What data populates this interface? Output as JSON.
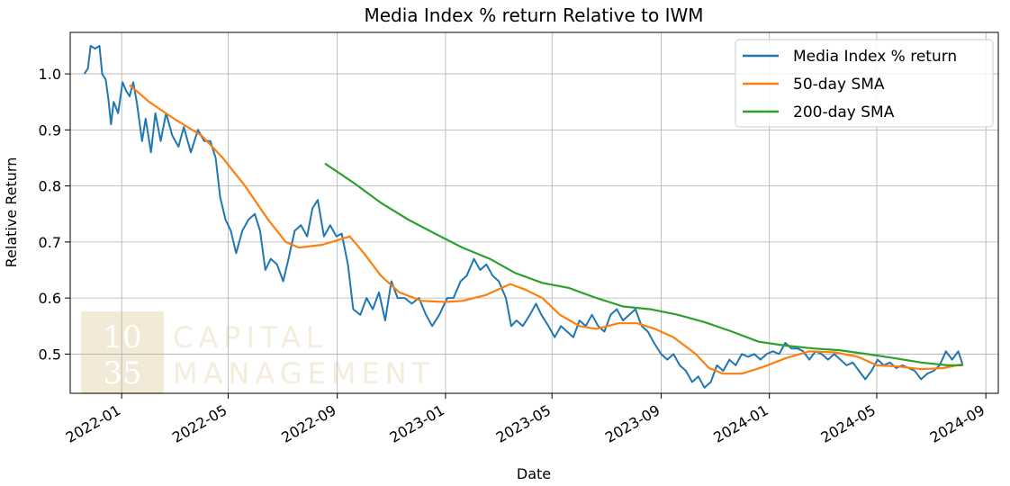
{
  "chart_data": {
    "type": "line",
    "title": "Media Index % return Relative to IWM",
    "xlabel": "Date",
    "ylabel": "Relative Return",
    "xlim": [
      "2021-11-04",
      "2024-09-15"
    ],
    "ylim": [
      0.43,
      1.074
    ],
    "grid": true,
    "legend_position": "top-right",
    "x_ticks": [
      {
        "date": "2022-01-01",
        "label": "2022-01"
      },
      {
        "date": "2022-05-01",
        "label": "2022-05"
      },
      {
        "date": "2022-09-01",
        "label": "2022-09"
      },
      {
        "date": "2023-01-01",
        "label": "2023-01"
      },
      {
        "date": "2023-05-01",
        "label": "2023-05"
      },
      {
        "date": "2023-09-01",
        "label": "2023-09"
      },
      {
        "date": "2024-01-01",
        "label": "2024-01"
      },
      {
        "date": "2024-05-01",
        "label": "2024-05"
      },
      {
        "date": "2024-09-01",
        "label": "2024-09"
      }
    ],
    "y_ticks": [
      {
        "value": 0.5,
        "label": "0.5"
      },
      {
        "value": 0.6,
        "label": "0.6"
      },
      {
        "value": 0.7,
        "label": "0.7"
      },
      {
        "value": 0.8,
        "label": "0.8"
      },
      {
        "value": 0.9,
        "label": "0.9"
      },
      {
        "value": 1.0,
        "label": "1.0"
      }
    ],
    "series": [
      {
        "name": "Media Index % return",
        "color": "#1f77b4",
        "points": [
          [
            "2021-11-20",
            1.0
          ],
          [
            "2021-11-24",
            1.01
          ],
          [
            "2021-11-27",
            1.05
          ],
          [
            "2021-12-02",
            1.045
          ],
          [
            "2021-12-07",
            1.05
          ],
          [
            "2021-12-10",
            1.0
          ],
          [
            "2021-12-14",
            0.99
          ],
          [
            "2021-12-17",
            0.955
          ],
          [
            "2021-12-20",
            0.91
          ],
          [
            "2021-12-23",
            0.95
          ],
          [
            "2021-12-28",
            0.93
          ],
          [
            "2022-01-02",
            0.985
          ],
          [
            "2022-01-06",
            0.97
          ],
          [
            "2022-01-10",
            0.96
          ],
          [
            "2022-01-14",
            0.985
          ],
          [
            "2022-01-18",
            0.95
          ],
          [
            "2022-01-24",
            0.88
          ],
          [
            "2022-01-28",
            0.92
          ],
          [
            "2022-02-03",
            0.86
          ],
          [
            "2022-02-08",
            0.93
          ],
          [
            "2022-02-14",
            0.88
          ],
          [
            "2022-02-20",
            0.93
          ],
          [
            "2022-02-27",
            0.89
          ],
          [
            "2022-03-06",
            0.87
          ],
          [
            "2022-03-12",
            0.905
          ],
          [
            "2022-03-20",
            0.86
          ],
          [
            "2022-03-28",
            0.9
          ],
          [
            "2022-04-04",
            0.88
          ],
          [
            "2022-04-11",
            0.88
          ],
          [
            "2022-04-17",
            0.85
          ],
          [
            "2022-04-22",
            0.78
          ],
          [
            "2022-04-28",
            0.74
          ],
          [
            "2022-05-04",
            0.72
          ],
          [
            "2022-05-10",
            0.68
          ],
          [
            "2022-05-17",
            0.72
          ],
          [
            "2022-05-24",
            0.74
          ],
          [
            "2022-05-31",
            0.75
          ],
          [
            "2022-06-06",
            0.72
          ],
          [
            "2022-06-12",
            0.65
          ],
          [
            "2022-06-18",
            0.67
          ],
          [
            "2022-06-25",
            0.66
          ],
          [
            "2022-07-02",
            0.63
          ],
          [
            "2022-07-08",
            0.67
          ],
          [
            "2022-07-15",
            0.72
          ],
          [
            "2022-07-22",
            0.73
          ],
          [
            "2022-07-29",
            0.71
          ],
          [
            "2022-08-04",
            0.76
          ],
          [
            "2022-08-10",
            0.775
          ],
          [
            "2022-08-17",
            0.71
          ],
          [
            "2022-08-24",
            0.73
          ],
          [
            "2022-08-31",
            0.71
          ],
          [
            "2022-09-06",
            0.715
          ],
          [
            "2022-09-13",
            0.66
          ],
          [
            "2022-09-19",
            0.58
          ],
          [
            "2022-09-27",
            0.57
          ],
          [
            "2022-10-04",
            0.6
          ],
          [
            "2022-10-11",
            0.58
          ],
          [
            "2022-10-18",
            0.61
          ],
          [
            "2022-10-25",
            0.56
          ],
          [
            "2022-11-01",
            0.63
          ],
          [
            "2022-11-08",
            0.6
          ],
          [
            "2022-11-16",
            0.6
          ],
          [
            "2022-11-24",
            0.59
          ],
          [
            "2022-12-02",
            0.6
          ],
          [
            "2022-12-10",
            0.57
          ],
          [
            "2022-12-17",
            0.55
          ],
          [
            "2022-12-25",
            0.57
          ],
          [
            "2023-01-03",
            0.6
          ],
          [
            "2023-01-10",
            0.6
          ],
          [
            "2023-01-18",
            0.63
          ],
          [
            "2023-01-25",
            0.64
          ],
          [
            "2023-02-02",
            0.67
          ],
          [
            "2023-02-09",
            0.65
          ],
          [
            "2023-02-16",
            0.66
          ],
          [
            "2023-02-23",
            0.64
          ],
          [
            "2023-03-02",
            0.63
          ],
          [
            "2023-03-10",
            0.6
          ],
          [
            "2023-03-16",
            0.55
          ],
          [
            "2023-03-22",
            0.56
          ],
          [
            "2023-03-29",
            0.55
          ],
          [
            "2023-04-06",
            0.57
          ],
          [
            "2023-04-13",
            0.59
          ],
          [
            "2023-04-19",
            0.57
          ],
          [
            "2023-04-27",
            0.55
          ],
          [
            "2023-05-04",
            0.53
          ],
          [
            "2023-05-11",
            0.55
          ],
          [
            "2023-05-18",
            0.54
          ],
          [
            "2023-05-25",
            0.53
          ],
          [
            "2023-06-01",
            0.56
          ],
          [
            "2023-06-08",
            0.55
          ],
          [
            "2023-06-15",
            0.57
          ],
          [
            "2023-06-22",
            0.55
          ],
          [
            "2023-06-29",
            0.54
          ],
          [
            "2023-07-06",
            0.57
          ],
          [
            "2023-07-13",
            0.58
          ],
          [
            "2023-07-20",
            0.56
          ],
          [
            "2023-07-27",
            0.57
          ],
          [
            "2023-08-03",
            0.58
          ],
          [
            "2023-08-10",
            0.55
          ],
          [
            "2023-08-17",
            0.54
          ],
          [
            "2023-08-24",
            0.52
          ],
          [
            "2023-09-01",
            0.5
          ],
          [
            "2023-09-08",
            0.49
          ],
          [
            "2023-09-15",
            0.5
          ],
          [
            "2023-09-22",
            0.48
          ],
          [
            "2023-09-29",
            0.47
          ],
          [
            "2023-10-06",
            0.45
          ],
          [
            "2023-10-13",
            0.46
          ],
          [
            "2023-10-20",
            0.44
          ],
          [
            "2023-10-27",
            0.45
          ],
          [
            "2023-11-03",
            0.48
          ],
          [
            "2023-11-10",
            0.47
          ],
          [
            "2023-11-17",
            0.49
          ],
          [
            "2023-11-24",
            0.48
          ],
          [
            "2023-12-01",
            0.5
          ],
          [
            "2023-12-08",
            0.495
          ],
          [
            "2023-12-15",
            0.5
          ],
          [
            "2023-12-22",
            0.49
          ],
          [
            "2023-12-29",
            0.5
          ],
          [
            "2024-01-05",
            0.505
          ],
          [
            "2024-01-12",
            0.5
          ],
          [
            "2024-01-19",
            0.52
          ],
          [
            "2024-01-26",
            0.51
          ],
          [
            "2024-02-02",
            0.51
          ],
          [
            "2024-02-08",
            0.505
          ],
          [
            "2024-02-15",
            0.49
          ],
          [
            "2024-02-22",
            0.505
          ],
          [
            "2024-02-29",
            0.5
          ],
          [
            "2024-03-07",
            0.49
          ],
          [
            "2024-03-14",
            0.5
          ],
          [
            "2024-03-21",
            0.49
          ],
          [
            "2024-03-28",
            0.48
          ],
          [
            "2024-04-04",
            0.485
          ],
          [
            "2024-04-11",
            0.47
          ],
          [
            "2024-04-18",
            0.455
          ],
          [
            "2024-04-25",
            0.47
          ],
          [
            "2024-05-02",
            0.49
          ],
          [
            "2024-05-09",
            0.48
          ],
          [
            "2024-05-16",
            0.485
          ],
          [
            "2024-05-23",
            0.475
          ],
          [
            "2024-05-30",
            0.48
          ],
          [
            "2024-06-06",
            0.475
          ],
          [
            "2024-06-13",
            0.47
          ],
          [
            "2024-06-20",
            0.455
          ],
          [
            "2024-06-27",
            0.465
          ],
          [
            "2024-07-04",
            0.47
          ],
          [
            "2024-07-11",
            0.48
          ],
          [
            "2024-07-18",
            0.505
          ],
          [
            "2024-07-25",
            0.49
          ],
          [
            "2024-08-01",
            0.505
          ],
          [
            "2024-08-06",
            0.48
          ]
        ]
      },
      {
        "name": "50-day SMA",
        "color": "#ff7f0e",
        "points": [
          [
            "2022-01-10",
            0.98
          ],
          [
            "2022-02-01",
            0.95
          ],
          [
            "2022-03-01",
            0.92
          ],
          [
            "2022-04-01",
            0.89
          ],
          [
            "2022-04-25",
            0.85
          ],
          [
            "2022-05-20",
            0.8
          ],
          [
            "2022-06-15",
            0.74
          ],
          [
            "2022-07-05",
            0.7
          ],
          [
            "2022-07-20",
            0.69
          ],
          [
            "2022-08-15",
            0.695
          ],
          [
            "2022-09-05",
            0.705
          ],
          [
            "2022-09-15",
            0.71
          ],
          [
            "2022-10-01",
            0.68
          ],
          [
            "2022-10-20",
            0.64
          ],
          [
            "2022-11-10",
            0.61
          ],
          [
            "2022-12-05",
            0.595
          ],
          [
            "2023-01-01",
            0.593
          ],
          [
            "2023-01-20",
            0.595
          ],
          [
            "2023-02-15",
            0.605
          ],
          [
            "2023-03-15",
            0.625
          ],
          [
            "2023-04-01",
            0.615
          ],
          [
            "2023-04-20",
            0.6
          ],
          [
            "2023-05-10",
            0.57
          ],
          [
            "2023-06-01",
            0.55
          ],
          [
            "2023-06-20",
            0.545
          ],
          [
            "2023-07-15",
            0.555
          ],
          [
            "2023-08-05",
            0.555
          ],
          [
            "2023-08-25",
            0.545
          ],
          [
            "2023-09-15",
            0.53
          ],
          [
            "2023-10-10",
            0.5
          ],
          [
            "2023-10-25",
            0.475
          ],
          [
            "2023-11-10",
            0.465
          ],
          [
            "2023-12-01",
            0.465
          ],
          [
            "2023-12-25",
            0.477
          ],
          [
            "2024-01-20",
            0.493
          ],
          [
            "2024-02-15",
            0.505
          ],
          [
            "2024-03-15",
            0.503
          ],
          [
            "2024-04-10",
            0.495
          ],
          [
            "2024-05-01",
            0.48
          ],
          [
            "2024-05-25",
            0.478
          ],
          [
            "2024-06-20",
            0.473
          ],
          [
            "2024-07-15",
            0.475
          ],
          [
            "2024-08-06",
            0.482
          ]
        ]
      },
      {
        "name": "200-day SMA",
        "color": "#2ca02c",
        "points": [
          [
            "2022-08-18",
            0.84
          ],
          [
            "2022-09-20",
            0.805
          ],
          [
            "2022-10-20",
            0.77
          ],
          [
            "2022-11-20",
            0.74
          ],
          [
            "2022-12-20",
            0.715
          ],
          [
            "2023-01-20",
            0.69
          ],
          [
            "2023-02-20",
            0.67
          ],
          [
            "2023-03-20",
            0.645
          ],
          [
            "2023-04-20",
            0.627
          ],
          [
            "2023-05-20",
            0.618
          ],
          [
            "2023-06-20",
            0.6
          ],
          [
            "2023-07-20",
            0.585
          ],
          [
            "2023-08-20",
            0.58
          ],
          [
            "2023-09-20",
            0.57
          ],
          [
            "2023-10-20",
            0.557
          ],
          [
            "2023-11-20",
            0.54
          ],
          [
            "2023-12-20",
            0.522
          ],
          [
            "2024-01-20",
            0.515
          ],
          [
            "2024-02-20",
            0.51
          ],
          [
            "2024-03-20",
            0.507
          ],
          [
            "2024-04-20",
            0.5
          ],
          [
            "2024-05-20",
            0.493
          ],
          [
            "2024-06-20",
            0.485
          ],
          [
            "2024-07-20",
            0.48
          ],
          [
            "2024-08-06",
            0.48
          ]
        ]
      }
    ]
  },
  "watermark": {
    "logo_top": "10",
    "logo_bottom": "35",
    "line1": "CAPITAL",
    "line2": "MANAGEMENT",
    "color": "#f2ead7"
  }
}
